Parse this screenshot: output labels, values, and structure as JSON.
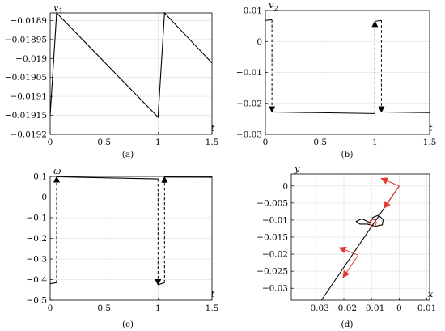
{
  "chart_data": [
    {
      "type": "line",
      "panel": "(a)",
      "xlabel": "t",
      "ylabel": "v",
      "ylabel_sub": "1",
      "xlim": [
        0,
        1.5
      ],
      "ylim": [
        -0.0192,
        -0.01888
      ],
      "xticks": [
        "0",
        "0.5",
        "1",
        "1.5"
      ],
      "yticks": [
        "-0.0189",
        "-0.01895",
        "-0.019",
        "-0.01905",
        "-0.0191",
        "-0.01915",
        "-0.0192"
      ],
      "grid": true,
      "series": [
        {
          "style": "solid",
          "points": [
            [
              0,
              -0.01915
            ],
            [
              0.06,
              -0.01888
            ],
            [
              1.0,
              -0.019155
            ],
            [
              1.06,
              -0.01888
            ],
            [
              1.5,
              -0.019012
            ]
          ]
        }
      ]
    },
    {
      "type": "line",
      "panel": "(b)",
      "xlabel": "t",
      "ylabel": "v",
      "ylabel_sub": "2",
      "xlim": [
        0,
        1.5
      ],
      "ylim": [
        -0.03,
        0.01
      ],
      "xticks": [
        "0",
        "0.5",
        "1",
        "1.5"
      ],
      "yticks": [
        "0.01",
        "0",
        "-0.01",
        "-0.02",
        "-0.03"
      ],
      "grid": true,
      "series": [
        {
          "style": "solid",
          "points": [
            [
              0,
              0.0068
            ],
            [
              0.06,
              0.007
            ]
          ]
        },
        {
          "style": "solid",
          "points": [
            [
              0.06,
              -0.0228
            ],
            [
              1.0,
              -0.0233
            ]
          ]
        },
        {
          "style": "solid",
          "points": [
            [
              1.0,
              0.0065
            ],
            [
              1.06,
              0.0068
            ]
          ]
        },
        {
          "style": "solid",
          "points": [
            [
              1.06,
              -0.0228
            ],
            [
              1.5,
              -0.023
            ]
          ]
        },
        {
          "style": "dashed-arrow",
          "points": [
            [
              0.06,
              0.007
            ],
            [
              0.06,
              -0.0228
            ]
          ]
        },
        {
          "style": "dashed-arrow",
          "points": [
            [
              1.0,
              -0.0233
            ],
            [
              1.0,
              0.0065
            ]
          ]
        },
        {
          "style": "dashed-arrow",
          "points": [
            [
              1.06,
              0.0068
            ],
            [
              1.06,
              -0.0228
            ]
          ]
        }
      ]
    },
    {
      "type": "line",
      "panel": "(c)",
      "xlabel": "t",
      "ylabel": "ω",
      "xlim": [
        0,
        1.5
      ],
      "ylim": [
        -0.5,
        0.1
      ],
      "xticks": [
        "0",
        "0.5",
        "1",
        "1.5"
      ],
      "yticks": [
        "0.1",
        "0",
        "-0.1",
        "-0.2",
        "-0.3",
        "-0.4",
        "-0.5"
      ],
      "grid": true,
      "series": [
        {
          "style": "solid",
          "points": [
            [
              0,
              -0.42
            ],
            [
              0.06,
              -0.415
            ]
          ]
        },
        {
          "style": "solid",
          "points": [
            [
              0.06,
              0.098
            ],
            [
              1.0,
              0.088
            ]
          ]
        },
        {
          "style": "solid",
          "points": [
            [
              1.0,
              -0.425
            ],
            [
              1.06,
              -0.415
            ]
          ]
        },
        {
          "style": "solid",
          "points": [
            [
              1.06,
              0.097
            ],
            [
              1.5,
              0.096
            ]
          ]
        },
        {
          "style": "dashed-arrow",
          "points": [
            [
              0.06,
              -0.415
            ],
            [
              0.06,
              0.098
            ]
          ]
        },
        {
          "style": "dashed-arrow",
          "points": [
            [
              1.0,
              0.088
            ],
            [
              1.0,
              -0.425
            ]
          ]
        },
        {
          "style": "dashed-arrow",
          "points": [
            [
              1.06,
              -0.415
            ],
            [
              1.06,
              0.097
            ]
          ]
        }
      ]
    },
    {
      "type": "line",
      "panel": "(d)",
      "xlabel": "x",
      "ylabel": "y",
      "xlim": [
        -0.039,
        0.011
      ],
      "ylim": [
        -0.0335,
        0.0035
      ],
      "xticks": [
        "-0.03",
        "-0.02",
        "-0.01",
        "0",
        "0.01"
      ],
      "yticks": [
        "0",
        "-0.005",
        "-0.01",
        "-0.015",
        "-0.02",
        "-0.025",
        "-0.03"
      ],
      "grid": true,
      "series": [
        {
          "style": "solid",
          "points": [
            [
              0,
              0
            ],
            [
              -0.0281,
              -0.0335
            ]
          ]
        },
        {
          "style": "solid",
          "closed": true,
          "points": [
            [
              -0.0105,
              -0.0108
            ],
            [
              -0.0135,
              -0.0096
            ],
            [
              -0.0155,
              -0.0104
            ],
            [
              -0.0142,
              -0.0112
            ],
            [
              -0.0115,
              -0.0112
            ],
            [
              -0.0085,
              -0.0118
            ],
            [
              -0.0061,
              -0.0114
            ],
            [
              -0.0058,
              -0.0098
            ],
            [
              -0.0075,
              -0.0086
            ],
            [
              -0.0095,
              -0.0092
            ],
            [
              -0.0105,
              -0.0108
            ]
          ]
        },
        {
          "style": "circle",
          "points": [
            [
              -0.0095,
              -0.0108
            ]
          ]
        }
      ],
      "vectors": [
        {
          "color": "#e53935",
          "from": [
            0,
            0
          ],
          "to": [
            -0.0065,
            0.0022
          ]
        },
        {
          "color": "#e53935",
          "from": [
            0,
            0
          ],
          "to": [
            -0.0055,
            -0.0065
          ]
        },
        {
          "color": "#e53935",
          "from": [
            -0.0148,
            -0.0203
          ],
          "to": [
            -0.0216,
            -0.0181
          ]
        },
        {
          "color": "#e53935",
          "from": [
            -0.0148,
            -0.0203
          ],
          "to": [
            -0.0203,
            -0.0268
          ]
        }
      ]
    }
  ]
}
